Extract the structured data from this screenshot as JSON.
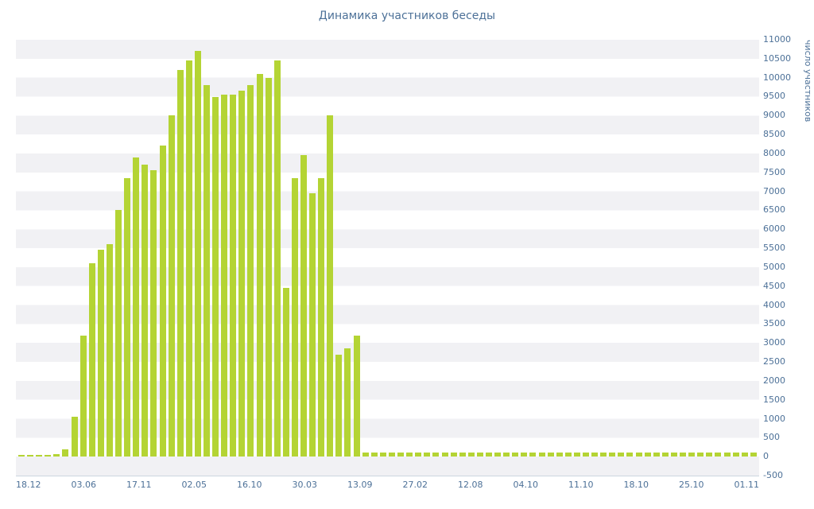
{
  "chart_data": {
    "type": "bar",
    "title": "Динамика участников беседы",
    "xlabel": "",
    "ylabel": "число участников",
    "x_tick_labels": [
      "18.12",
      "03.06",
      "17.11",
      "02.05",
      "16.10",
      "30.03",
      "13.09",
      "27.02",
      "12.08",
      "04.10",
      "11.10",
      "18.10",
      "25.10",
      "01.11"
    ],
    "y_axis": {
      "min": -500,
      "max": 11000,
      "step": 500,
      "side": "right"
    },
    "grid": "horizontal-bands",
    "legend": "none",
    "bar_color": "#b4d434",
    "text_color": "#4d7198",
    "band_color": "#f1f1f4",
    "values": [
      40,
      40,
      40,
      40,
      60,
      200,
      1050,
      3200,
      5100,
      5450,
      5600,
      6500,
      7350,
      7900,
      7700,
      7550,
      8200,
      9000,
      10200,
      10450,
      10700,
      9800,
      9500,
      9550,
      9550,
      9650,
      9800,
      10100,
      10000,
      10450,
      4450,
      7350,
      7950,
      6950,
      7350,
      9000,
      2700,
      2850,
      3200,
      100,
      100,
      100,
      100,
      100,
      100,
      100,
      100,
      100,
      100,
      100,
      100,
      100,
      100,
      100,
      100,
      100,
      100,
      100,
      100,
      100,
      100,
      100,
      100,
      100,
      100,
      100,
      100,
      100,
      100,
      100,
      100,
      100,
      100,
      100,
      100,
      100,
      100,
      100,
      100,
      100,
      100,
      100,
      100,
      100
    ]
  }
}
